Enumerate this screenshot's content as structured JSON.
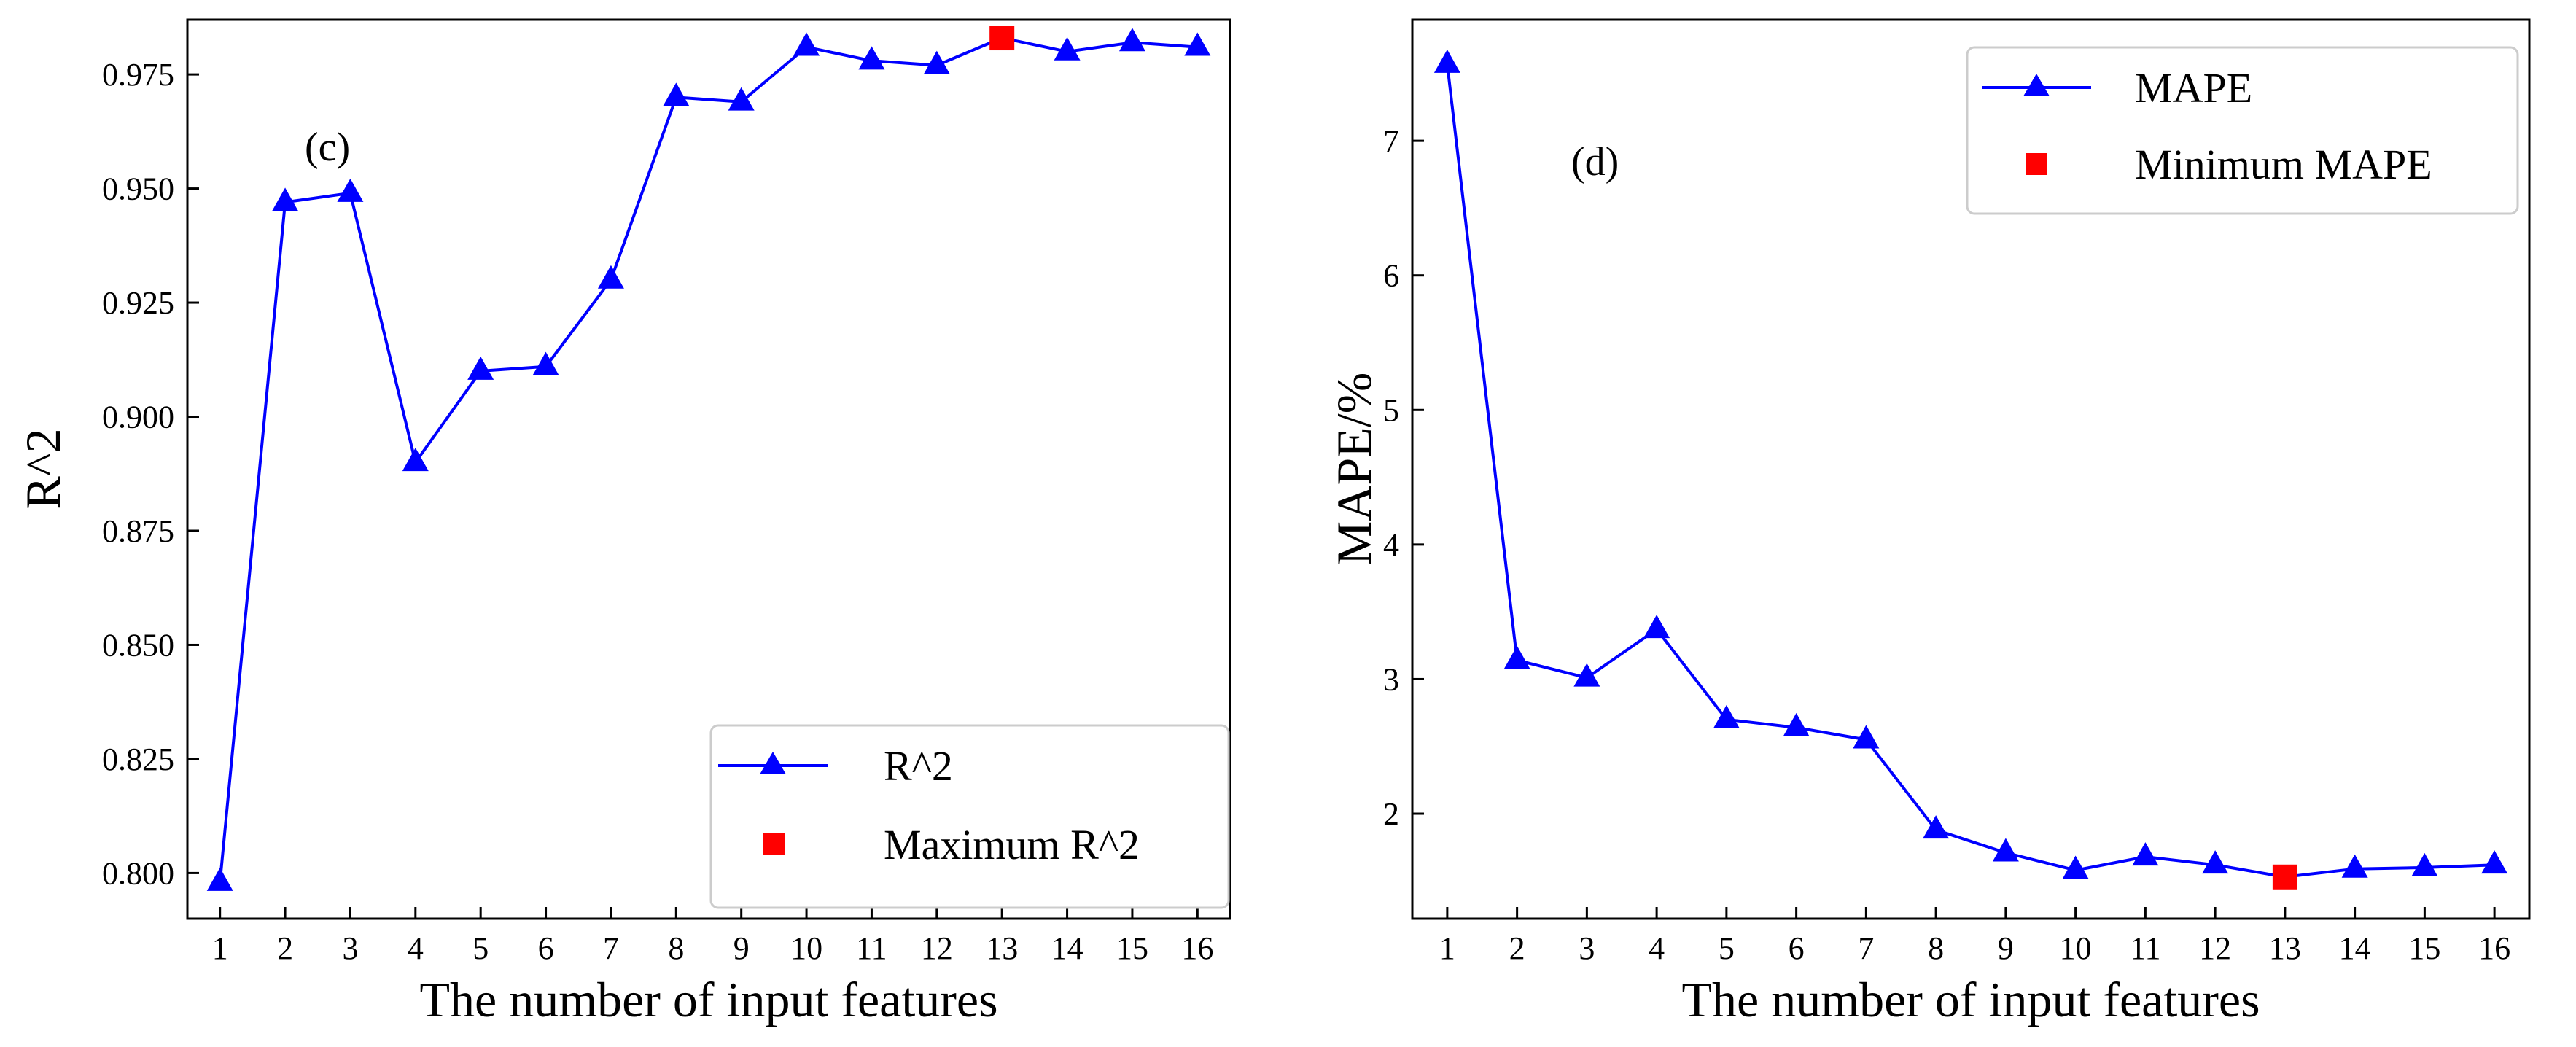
{
  "chart_data": [
    {
      "type": "line",
      "panel_label": "(c)",
      "title": "",
      "xlabel": "The number of input features",
      "ylabel": "R^2",
      "x": [
        1,
        2,
        3,
        4,
        5,
        6,
        7,
        8,
        9,
        10,
        11,
        12,
        13,
        14,
        15,
        16
      ],
      "xticks": [
        "1",
        "2",
        "3",
        "4",
        "5",
        "6",
        "7",
        "8",
        "9",
        "10",
        "11",
        "12",
        "13",
        "14",
        "15",
        "16"
      ],
      "xlim": [
        0.5,
        16.5
      ],
      "ylim": [
        0.79,
        0.987
      ],
      "yticks": [
        0.8,
        0.825,
        0.85,
        0.875,
        0.9,
        0.925,
        0.95,
        0.975
      ],
      "ytick_labels": [
        "0.800",
        "0.825",
        "0.850",
        "0.875",
        "0.900",
        "0.925",
        "0.950",
        "0.975"
      ],
      "series": [
        {
          "name": "R^2",
          "color": "#0000ff",
          "marker": "triangle",
          "values": [
            0.798,
            0.947,
            0.949,
            0.89,
            0.91,
            0.911,
            0.93,
            0.97,
            0.969,
            0.981,
            0.978,
            0.977,
            0.983,
            0.98,
            0.982,
            0.981
          ]
        }
      ],
      "highlight": {
        "name": "Maximum R^2",
        "x": 13,
        "y": 0.983,
        "color": "#ff0000",
        "marker": "square"
      },
      "legend_position": "bottom-right",
      "grid": false
    },
    {
      "type": "line",
      "panel_label": "(d)",
      "title": "",
      "xlabel": "The number of input features",
      "ylabel": "MAPE/%",
      "x": [
        1,
        2,
        3,
        4,
        5,
        6,
        7,
        8,
        9,
        10,
        11,
        12,
        13,
        14,
        15,
        16
      ],
      "xticks": [
        "1",
        "2",
        "3",
        "4",
        "5",
        "6",
        "7",
        "8",
        "9",
        "10",
        "11",
        "12",
        "13",
        "14",
        "15",
        "16"
      ],
      "xlim": [
        0.5,
        16.5
      ],
      "ylim": [
        1.22,
        7.9
      ],
      "yticks": [
        2,
        3,
        4,
        5,
        6,
        7
      ],
      "ytick_labels": [
        "2",
        "3",
        "4",
        "5",
        "6",
        "7"
      ],
      "series": [
        {
          "name": "MAPE",
          "color": "#0000ff",
          "marker": "triangle",
          "values": [
            7.57,
            3.14,
            3.01,
            3.37,
            2.7,
            2.64,
            2.55,
            1.88,
            1.71,
            1.58,
            1.68,
            1.62,
            1.53,
            1.59,
            1.6,
            1.62
          ]
        }
      ],
      "highlight": {
        "name": "Minimum MAPE",
        "x": 13,
        "y": 1.53,
        "color": "#ff0000",
        "marker": "square"
      },
      "legend_position": "top-right",
      "grid": false
    }
  ]
}
